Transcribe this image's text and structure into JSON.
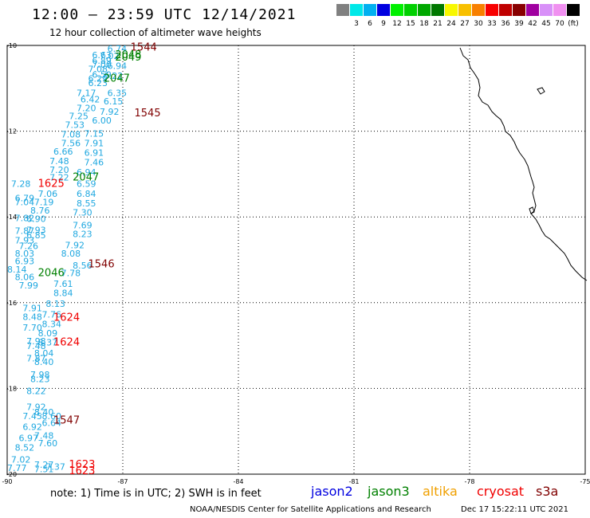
{
  "title": "12:00 – 23:59 UTC 12/14/2021",
  "subtitle": "12 hour collection of altimeter wave heights",
  "legend": {
    "swatches": [
      {
        "label": "",
        "color": "#808080"
      },
      {
        "label": "3",
        "color": "#00e8e8"
      },
      {
        "label": "6",
        "color": "#00b0f0"
      },
      {
        "label": "9",
        "color": "#0000e0"
      },
      {
        "label": "12",
        "color": "#00f000"
      },
      {
        "label": "15",
        "color": "#00d000"
      },
      {
        "label": "18",
        "color": "#00a800"
      },
      {
        "label": "21",
        "color": "#007800"
      },
      {
        "label": "24",
        "color": "#f8f800"
      },
      {
        "label": "27",
        "color": "#f8c000"
      },
      {
        "label": "30",
        "color": "#f88000"
      },
      {
        "label": "33",
        "color": "#f80000"
      },
      {
        "label": "36",
        "color": "#c00000"
      },
      {
        "label": "39",
        "color": "#880000"
      },
      {
        "label": "42",
        "color": "#a000a0"
      },
      {
        "label": "45",
        "color": "#d890f8"
      },
      {
        "label": "70",
        "color": "#f090f0"
      },
      {
        "label": "(ft)",
        "color": "#000000"
      }
    ]
  },
  "axes": {
    "lat_labels": [
      "-10",
      "-12",
      "-14",
      "-16",
      "-18",
      "-20"
    ],
    "lon_labels": [
      "-90",
      "-87",
      "-84",
      "-81",
      "-78",
      "-75"
    ]
  },
  "wave_labels": [
    {
      "t": "6.74",
      "lon": -87.4,
      "lat": -10.15
    },
    {
      "t": "6.63",
      "lon": -87.8,
      "lat": -10.3
    },
    {
      "t": "7.02",
      "lon": -87.6,
      "lat": -10.32
    },
    {
      "t": "6.89",
      "lon": -87.8,
      "lat": -10.43
    },
    {
      "t": "6.94",
      "lon": -87.4,
      "lat": -10.55
    },
    {
      "t": "7.00",
      "lon": -87.8,
      "lat": -10.52
    },
    {
      "t": "7.08",
      "lon": -87.9,
      "lat": -10.62
    },
    {
      "t": "6.22",
      "lon": -87.5,
      "lat": -10.78
    },
    {
      "t": "6.59",
      "lon": -87.8,
      "lat": -10.75
    },
    {
      "t": "6.29",
      "lon": -87.9,
      "lat": -10.85
    },
    {
      "t": "6.23",
      "lon": -87.9,
      "lat": -10.95
    },
    {
      "t": "7.17",
      "lon": -88.2,
      "lat": -11.18
    },
    {
      "t": "6.35",
      "lon": -87.4,
      "lat": -11.18
    },
    {
      "t": "6.42",
      "lon": -88.1,
      "lat": -11.33
    },
    {
      "t": "6.15",
      "lon": -87.5,
      "lat": -11.38
    },
    {
      "t": "7.20",
      "lon": -88.2,
      "lat": -11.53
    },
    {
      "t": "7.92",
      "lon": -87.6,
      "lat": -11.62
    },
    {
      "t": "7.25",
      "lon": -88.4,
      "lat": -11.72
    },
    {
      "t": "6.00",
      "lon": -87.8,
      "lat": -11.82
    },
    {
      "t": "7.53",
      "lon": -88.5,
      "lat": -11.92
    },
    {
      "t": "7.15",
      "lon": -88.0,
      "lat": -12.13
    },
    {
      "t": "7.08",
      "lon": -88.6,
      "lat": -12.15
    },
    {
      "t": "7.91",
      "lon": -88.0,
      "lat": -12.35
    },
    {
      "t": "7.56",
      "lon": -88.6,
      "lat": -12.35
    },
    {
      "t": "6.66",
      "lon": -88.8,
      "lat": -12.55
    },
    {
      "t": "6.91",
      "lon": -88.0,
      "lat": -12.57
    },
    {
      "t": "7.48",
      "lon": -88.9,
      "lat": -12.77
    },
    {
      "t": "7.46",
      "lon": -88.0,
      "lat": -12.8
    },
    {
      "t": "7.20",
      "lon": -88.9,
      "lat": -12.97
    },
    {
      "t": "6.94",
      "lon": -88.2,
      "lat": -13.03
    },
    {
      "t": "7.22",
      "lon": -88.9,
      "lat": -13.15
    },
    {
      "t": "7.28",
      "lon": -89.9,
      "lat": -13.3
    },
    {
      "t": "6.59",
      "lon": -88.2,
      "lat": -13.3
    },
    {
      "t": "7.06",
      "lon": -89.2,
      "lat": -13.53
    },
    {
      "t": "6.84",
      "lon": -88.2,
      "lat": -13.53
    },
    {
      "t": "6.79",
      "lon": -89.8,
      "lat": -13.63
    },
    {
      "t": "7.19",
      "lon": -89.3,
      "lat": -13.73
    },
    {
      "t": "7.04",
      "lon": -89.8,
      "lat": -13.73
    },
    {
      "t": "8.55",
      "lon": -88.2,
      "lat": -13.75
    },
    {
      "t": "8.76",
      "lon": -89.4,
      "lat": -13.92
    },
    {
      "t": "7.30",
      "lon": -88.3,
      "lat": -13.97
    },
    {
      "t": "7.82",
      "lon": -89.8,
      "lat": -14.1
    },
    {
      "t": "6.90",
      "lon": -89.5,
      "lat": -14.12
    },
    {
      "t": "7.69",
      "lon": -88.3,
      "lat": -14.27
    },
    {
      "t": "7.93",
      "lon": -89.5,
      "lat": -14.38
    },
    {
      "t": "7.87",
      "lon": -89.8,
      "lat": -14.4
    },
    {
      "t": "8.23",
      "lon": -88.3,
      "lat": -14.47
    },
    {
      "t": "6.85",
      "lon": -89.5,
      "lat": -14.5
    },
    {
      "t": "7.93",
      "lon": -89.8,
      "lat": -14.62
    },
    {
      "t": "7.92",
      "lon": -88.5,
      "lat": -14.73
    },
    {
      "t": "7.26",
      "lon": -89.7,
      "lat": -14.75
    },
    {
      "t": "8.03",
      "lon": -89.8,
      "lat": -14.93
    },
    {
      "t": "8.08",
      "lon": -88.6,
      "lat": -14.93
    },
    {
      "t": "6.93",
      "lon": -89.8,
      "lat": -15.1
    },
    {
      "t": "8.56",
      "lon": -88.3,
      "lat": -15.2
    },
    {
      "t": "8.14",
      "lon": -90.0,
      "lat": -15.3
    },
    {
      "t": "7.78",
      "lon": -88.6,
      "lat": -15.38
    },
    {
      "t": "8.06",
      "lon": -89.8,
      "lat": -15.47
    },
    {
      "t": "7.61",
      "lon": -88.8,
      "lat": -15.63
    },
    {
      "t": "7.99",
      "lon": -89.7,
      "lat": -15.67
    },
    {
      "t": "8.84",
      "lon": -88.8,
      "lat": -15.85
    },
    {
      "t": "8.13",
      "lon": -89.0,
      "lat": -16.1
    },
    {
      "t": "7.91",
      "lon": -89.6,
      "lat": -16.2
    },
    {
      "t": "7.76",
      "lon": -89.1,
      "lat": -16.35
    },
    {
      "t": "8.48",
      "lon": -89.6,
      "lat": -16.4
    },
    {
      "t": "8.34",
      "lon": -89.1,
      "lat": -16.57
    },
    {
      "t": "7.70",
      "lon": -89.6,
      "lat": -16.65
    },
    {
      "t": "8.09",
      "lon": -89.2,
      "lat": -16.78
    },
    {
      "t": "7.98",
      "lon": -89.5,
      "lat": -16.97
    },
    {
      "t": "8.37",
      "lon": -89.2,
      "lat": -17.0
    },
    {
      "t": "7.48",
      "lon": -89.5,
      "lat": -17.08
    },
    {
      "t": "8.04",
      "lon": -89.3,
      "lat": -17.25
    },
    {
      "t": "7.87",
      "lon": -89.5,
      "lat": -17.37
    },
    {
      "t": "8.40",
      "lon": -89.3,
      "lat": -17.45
    },
    {
      "t": "7.98",
      "lon": -89.4,
      "lat": -17.75
    },
    {
      "t": "8.23",
      "lon": -89.4,
      "lat": -17.85
    },
    {
      "t": "8.22",
      "lon": -89.5,
      "lat": -18.13
    },
    {
      "t": "7.92",
      "lon": -89.5,
      "lat": -18.5
    },
    {
      "t": "8.40",
      "lon": -89.3,
      "lat": -18.62
    },
    {
      "t": "7.45",
      "lon": -89.6,
      "lat": -18.72
    },
    {
      "t": "8.60",
      "lon": -89.1,
      "lat": -18.72
    },
    {
      "t": "6.64",
      "lon": -89.1,
      "lat": -18.88
    },
    {
      "t": "6.92",
      "lon": -89.6,
      "lat": -18.97
    },
    {
      "t": "7.48",
      "lon": -89.3,
      "lat": -19.17
    },
    {
      "t": "6.97",
      "lon": -89.7,
      "lat": -19.23
    },
    {
      "t": "7.60",
      "lon": -89.2,
      "lat": -19.35
    },
    {
      "t": "8.52",
      "lon": -89.8,
      "lat": -19.45
    },
    {
      "t": "7.02",
      "lon": -89.9,
      "lat": -19.73
    },
    {
      "t": "7.77",
      "lon": -90.0,
      "lat": -19.93
    },
    {
      "t": "7.27",
      "lon": -89.3,
      "lat": -19.85
    },
    {
      "t": "7.51",
      "lon": -89.3,
      "lat": -19.95
    },
    {
      "t": "7.37",
      "lon": -89.0,
      "lat": -19.9
    }
  ],
  "pass_labels": [
    {
      "t": "1544",
      "lon": -86.8,
      "lat": -10.12,
      "sat": "s3a"
    },
    {
      "t": "2048",
      "lon": -87.2,
      "lat": -10.3,
      "sat": "jason3"
    },
    {
      "t": "2049",
      "lon": -87.2,
      "lat": -10.35,
      "sat": "jason3"
    },
    {
      "t": "2047",
      "lon": -87.5,
      "lat": -10.85,
      "sat": "jason3"
    },
    {
      "t": "1545",
      "lon": -86.7,
      "lat": -11.65,
      "sat": "s3a"
    },
    {
      "t": "2047",
      "lon": -88.3,
      "lat": -13.15,
      "sat": "jason3"
    },
    {
      "t": "1625",
      "lon": -89.2,
      "lat": -13.3,
      "sat": "cryosat"
    },
    {
      "t": "1546",
      "lon": -87.9,
      "lat": -15.18,
      "sat": "s3a"
    },
    {
      "t": "2046",
      "lon": -89.2,
      "lat": -15.38,
      "sat": "jason3"
    },
    {
      "t": "1624",
      "lon": -88.8,
      "lat": -16.42,
      "sat": "cryosat"
    },
    {
      "t": "1624",
      "lon": -88.8,
      "lat": -17.0,
      "sat": "cryosat"
    },
    {
      "t": "1547",
      "lon": -88.8,
      "lat": -18.82,
      "sat": "s3a"
    },
    {
      "t": "1623",
      "lon": -88.4,
      "lat": -19.85,
      "sat": "cryosat"
    },
    {
      "t": "1623",
      "lon": -88.4,
      "lat": -20.0,
      "sat": "cryosat"
    }
  ],
  "sat_colors": {
    "jason2": "#0000e0",
    "jason3": "#008000",
    "altika": "#f0a000",
    "cryosat": "#f00000",
    "s3a": "#800000"
  },
  "wave_color": "#20a8e0",
  "note": "note: 1) Time is in UTC; 2) SWH is in feet",
  "satellites": [
    {
      "name": "jason2",
      "color": "#0000e0"
    },
    {
      "name": "jason3",
      "color": "#008000"
    },
    {
      "name": "altika",
      "color": "#f0a000"
    },
    {
      "name": "cryosat",
      "color": "#f00000"
    },
    {
      "name": "s3a",
      "color": "#800000"
    }
  ],
  "footer": "NOAA/NESDIS Center for Satellite Applications and Research",
  "stamp": "Dec 17 15:22:11 UTC 2021"
}
